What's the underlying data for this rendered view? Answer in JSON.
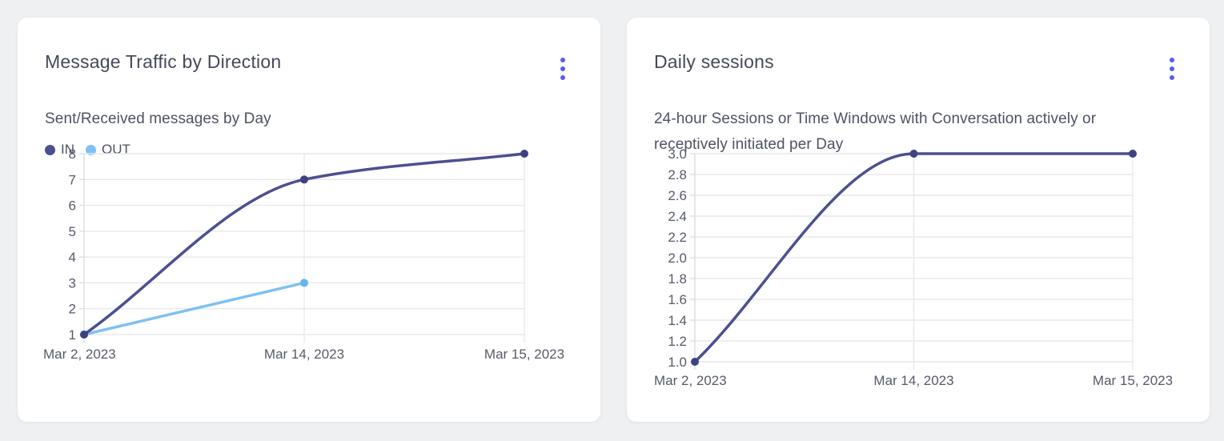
{
  "colors": {
    "page_bg": "#eef0f2",
    "card_bg": "#ffffff",
    "accent_menu": "#5a5af6",
    "title_text": "#454a59",
    "subtitle_text": "#4d5263",
    "tick_text": "#565b6b",
    "gridline": "#e8e9ee",
    "axis_line": "#dcdde4",
    "series_in": "#4c4f90",
    "series_out": "#7dc1f0"
  },
  "cards": [
    {
      "title": "Message Traffic by Direction",
      "subtitle": "Sent/Received messages by Day",
      "menu_icon": "kebab-menu"
    },
    {
      "title": "Daily sessions",
      "subtitle": "24-hour Sessions or Time Windows with Conversation actively or receptively initiated per Day",
      "menu_icon": "kebab-menu"
    }
  ],
  "chart_data": [
    {
      "type": "line",
      "title": "Message Traffic by Direction",
      "subtitle": "Sent/Received messages by Day",
      "categories": [
        "Mar 2, 2023",
        "Mar 14, 2023",
        "Mar 15, 2023"
      ],
      "series": [
        {
          "name": "IN",
          "color": "#4c4f90",
          "point_color": "#3f4280",
          "values": [
            1,
            7,
            8
          ]
        },
        {
          "name": "OUT",
          "color": "#7dc1f0",
          "point_color": "#66b5e9",
          "values": [
            1,
            3,
            null
          ]
        }
      ],
      "xlabel": "",
      "ylabel": "",
      "ylim": [
        1,
        8
      ],
      "ystep": 1,
      "y_decimals": 0,
      "grid": true,
      "legend_position": "top-left",
      "curve": "monotone"
    },
    {
      "type": "line",
      "title": "Daily sessions",
      "subtitle": "24-hour Sessions or Time Windows with Conversation actively or receptively initiated per Day",
      "categories": [
        "Mar 2, 2023",
        "Mar 14, 2023",
        "Mar 15, 2023"
      ],
      "series": [
        {
          "name": "Daily sessions",
          "color": "#4c4f90",
          "point_color": "#3f4280",
          "values": [
            1,
            3,
            3
          ]
        }
      ],
      "xlabel": "",
      "ylabel": "",
      "ylim": [
        1,
        3
      ],
      "ystep": 0.2,
      "y_decimals": 1,
      "grid": true,
      "legend_position": "none",
      "curve": "monotone"
    }
  ]
}
